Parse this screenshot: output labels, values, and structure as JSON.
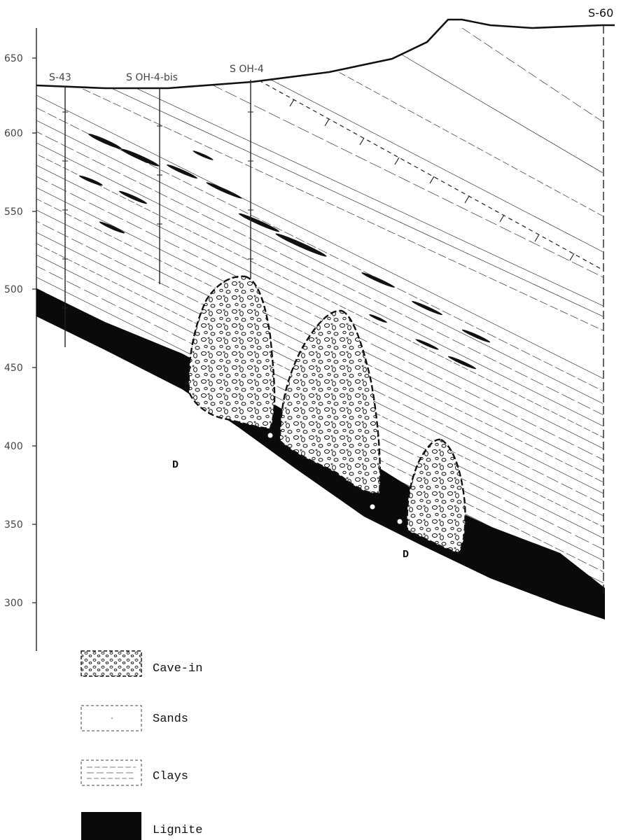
{
  "section": {
    "axis_ticks": [
      "650",
      "600",
      "550",
      "500",
      "450",
      "400",
      "350",
      "300"
    ],
    "boreholes": [
      "S-43",
      "S OH-4-bis",
      "S OH-4",
      "S-60"
    ],
    "markers": [
      "D",
      "D"
    ]
  },
  "legend": {
    "items": [
      "Cave-in",
      "Sands",
      "Clays",
      "Lignite"
    ]
  },
  "colors": {
    "ink": "#111111",
    "paper": "#ffffff"
  }
}
